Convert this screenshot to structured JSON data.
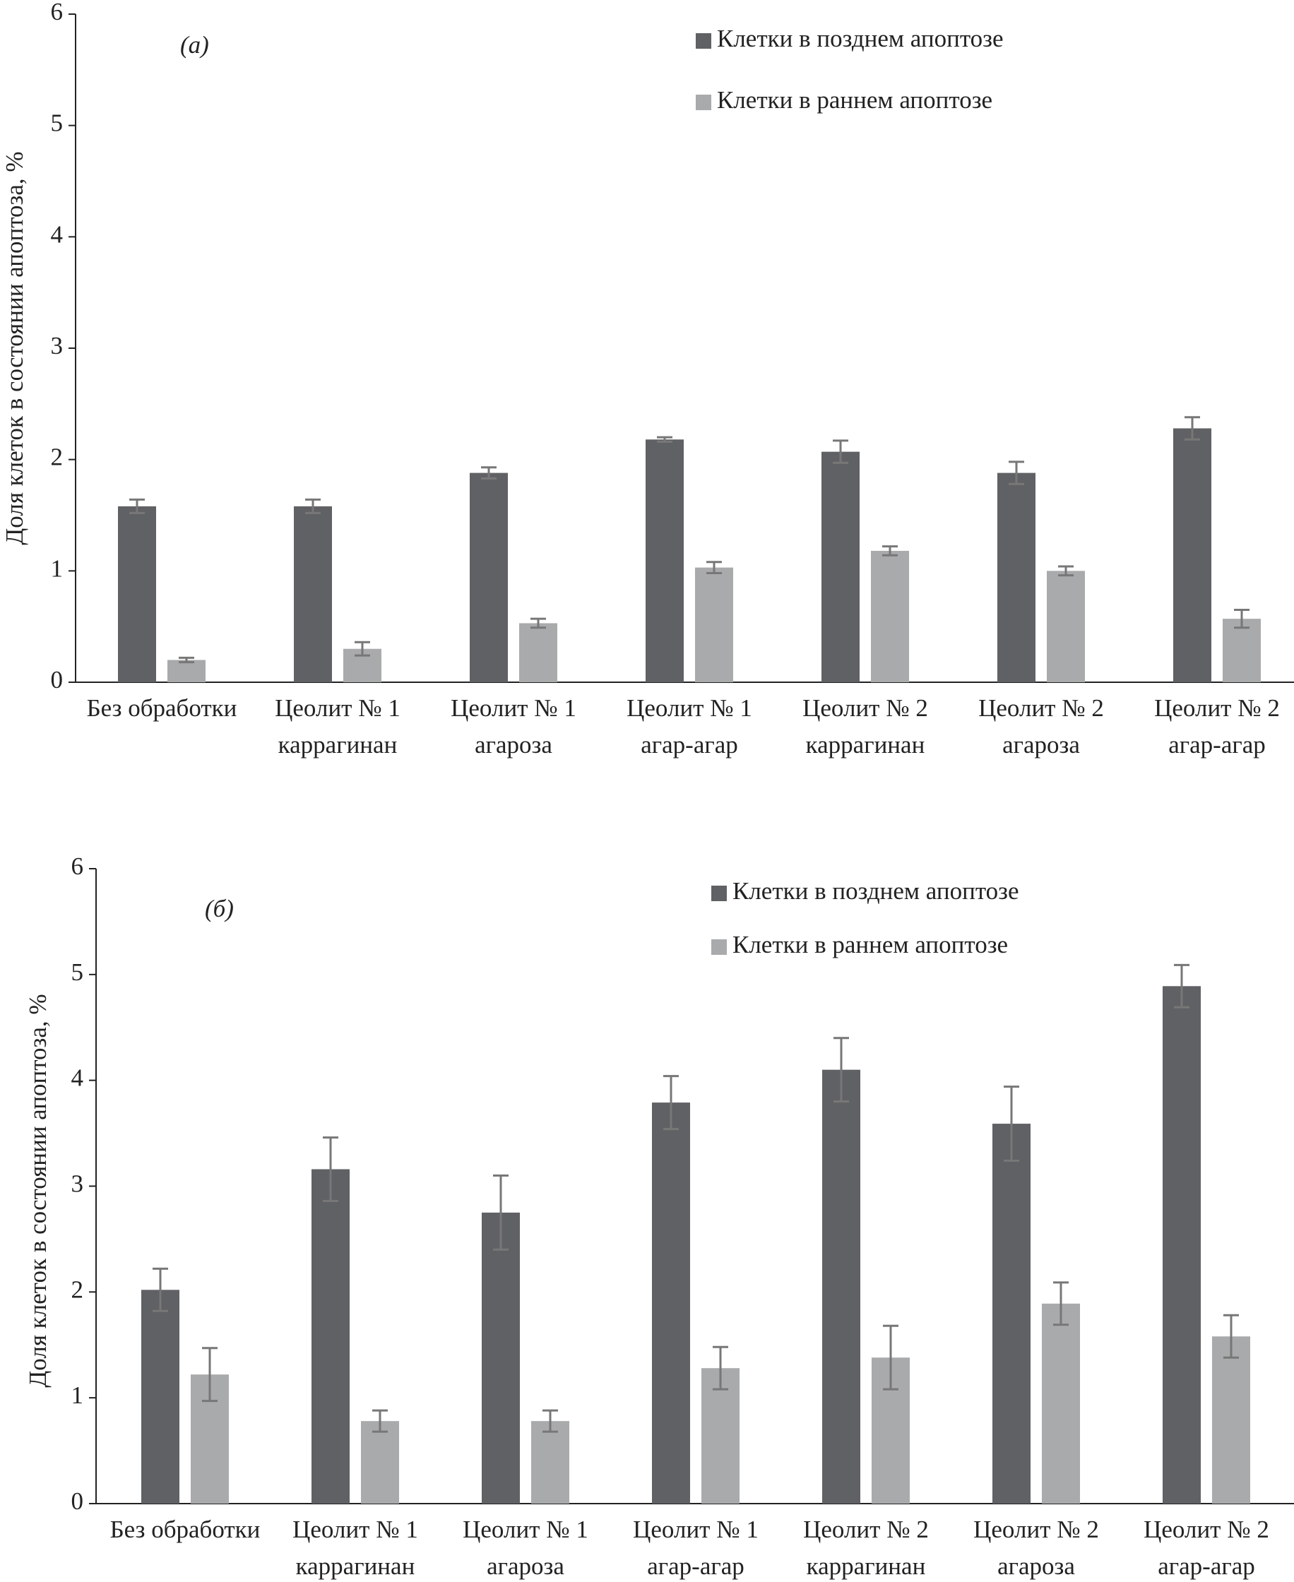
{
  "chart_data": [
    {
      "type": "bar",
      "panel_label": "(а)",
      "ylabel": "Доля клеток в состоянии апоптоза, %",
      "categories": [
        [
          "Без обработки"
        ],
        [
          "Цеолит № 1",
          "каррагинан"
        ],
        [
          "Цеолит № 1",
          "агароза"
        ],
        [
          "Цеолит № 1",
          "агар-агар"
        ],
        [
          "Цеолит № 2",
          "каррагинан"
        ],
        [
          "Цеолит № 2",
          "агароза"
        ],
        [
          "Цеолит № 2",
          "агар-агар"
        ]
      ],
      "series": [
        {
          "name": "Клетки в позднем апоптозе",
          "color": "#606164",
          "values": [
            1.58,
            1.58,
            1.88,
            2.18,
            2.07,
            1.88,
            2.28
          ],
          "errors": [
            0.06,
            0.06,
            0.05,
            0.02,
            0.1,
            0.1,
            0.1
          ]
        },
        {
          "name": "Клетки в раннем апоптозе",
          "color": "#a9aaac",
          "values": [
            0.2,
            0.3,
            0.53,
            1.03,
            1.18,
            1.0,
            0.57
          ],
          "errors": [
            0.02,
            0.06,
            0.04,
            0.05,
            0.04,
            0.04,
            0.08
          ]
        }
      ],
      "ylim": [
        0,
        6
      ],
      "yticks": [
        0,
        1,
        2,
        3,
        4,
        5,
        6
      ]
    },
    {
      "type": "bar",
      "panel_label": "(б)",
      "ylabel": "Доля клеток в состоянии апоптоза, %",
      "categories": [
        [
          "Без обработки"
        ],
        [
          "Цеолит № 1",
          "каррагинан"
        ],
        [
          "Цеолит № 1",
          "агароза"
        ],
        [
          "Цеолит № 1",
          "агар-агар"
        ],
        [
          "Цеолит № 2",
          "каррагинан"
        ],
        [
          "Цеолит № 2",
          "агароза"
        ],
        [
          "Цеолит № 2",
          "агар-агар"
        ]
      ],
      "series": [
        {
          "name": "Клетки в позднем апоптозе",
          "color": "#606164",
          "values": [
            2.02,
            3.16,
            2.75,
            3.79,
            4.1,
            3.59,
            4.89
          ],
          "errors": [
            0.2,
            0.3,
            0.35,
            0.25,
            0.3,
            0.35,
            0.2
          ]
        },
        {
          "name": "Клетки в раннем апоптозе",
          "color": "#a9aaac",
          "values": [
            1.22,
            0.78,
            0.78,
            1.28,
            1.38,
            1.89,
            1.58
          ],
          "errors": [
            0.25,
            0.1,
            0.1,
            0.2,
            0.3,
            0.2,
            0.2
          ]
        }
      ],
      "ylim": [
        0,
        6
      ],
      "yticks": [
        0,
        1,
        2,
        3,
        4,
        5,
        6
      ]
    }
  ]
}
